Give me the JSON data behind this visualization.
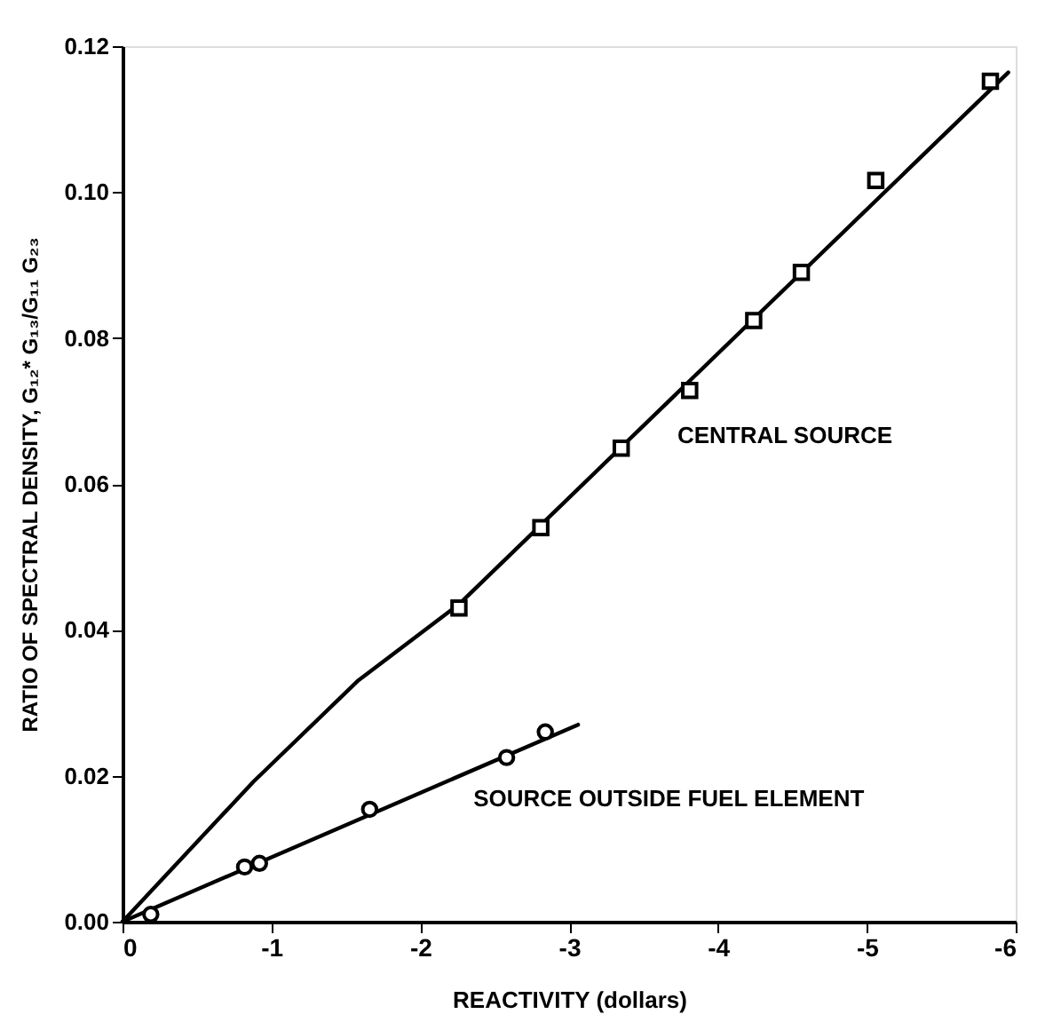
{
  "chart_data": {
    "type": "scatter",
    "xlabel": "REACTIVITY (dollars)",
    "ylabel": "RATIO OF SPECTRAL DENSITY, G₁₂* G₁₃/G₁₁ G₂₃",
    "xlim": [
      0,
      -6
    ],
    "xticks": [
      0,
      -1,
      -2,
      -3,
      -4,
      -5,
      -6
    ],
    "ylim": [
      0,
      0.12
    ],
    "yticks": [
      {
        "value": 0,
        "label": "0.00"
      },
      {
        "value": 0.02,
        "label": "0.02"
      },
      {
        "value": 0.04,
        "label": "0.04"
      },
      {
        "value": 0.06,
        "label": "0.06"
      },
      {
        "value": 0.08,
        "label": "0.08"
      },
      {
        "value": 0.1,
        "label": "0.10"
      },
      {
        "value": 0.12,
        "label": "0.12"
      }
    ],
    "grid": false,
    "series": [
      {
        "type": "line",
        "color": "#000000",
        "marker": "none",
        "line_style": "solid",
        "x": [
          0,
          -0.88,
          -1.58,
          -2.26,
          -5.95
        ],
        "values": [
          0,
          0.0192,
          0.033,
          0.0435,
          0.1164
        ]
      },
      {
        "color": "#000000",
        "marker": "square",
        "x": [
          -2.26,
          -2.81,
          -3.35,
          -3.81,
          -4.24,
          -4.56,
          -5.06,
          -5.83
        ],
        "values": [
          0.043,
          0.054,
          0.0649,
          0.0728,
          0.0824,
          0.089,
          0.1016,
          0.1152
        ]
      },
      {
        "type": "line",
        "color": "#000000",
        "marker": "none",
        "line_style": "solid",
        "x": [
          0,
          -3.06
        ],
        "values": [
          0,
          0.027
        ]
      },
      {
        "color": "#000000",
        "marker": "circle",
        "x": [
          -0.19,
          -0.82,
          -0.92,
          -1.66,
          -2.58,
          -2.84
        ],
        "values": [
          0.001,
          0.0075,
          0.008,
          0.0154,
          0.0225,
          0.026
        ]
      }
    ],
    "annotations": [
      {
        "text": "CENTRAL SOURCE",
        "x": -3.56,
        "y": 0.068
      },
      {
        "text": "SOURCE OUTSIDE FUEL ELEMENT",
        "x": -2.19,
        "y": 0.0183
      }
    ]
  }
}
